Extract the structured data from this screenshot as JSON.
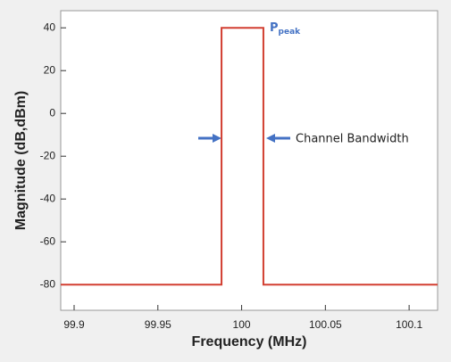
{
  "chart_data": {
    "type": "line",
    "x_label": "Frequency (MHz)",
    "y_label": "Magnitude (dB,dBm)",
    "series": [
      {
        "name": null,
        "color": "#d23f31",
        "x": [
          99.892,
          99.988,
          99.988,
          100.013,
          100.013,
          100.117
        ],
        "values": [
          -80,
          -80,
          40,
          40,
          -80,
          -80
        ]
      }
    ],
    "xlim": [
      99.892,
      100.117
    ],
    "ylim": [
      -92,
      48
    ],
    "xticks": [
      99.9,
      99.95,
      100,
      100.05,
      100.1
    ],
    "yticks": [
      40,
      20,
      0,
      -20,
      -40,
      -60,
      -80
    ],
    "grid": false,
    "annotations": {
      "peak_label": "P",
      "peak_subscript": "peak",
      "bandwidth_label": "Channel Bandwidth",
      "color": "#4472c4"
    }
  }
}
